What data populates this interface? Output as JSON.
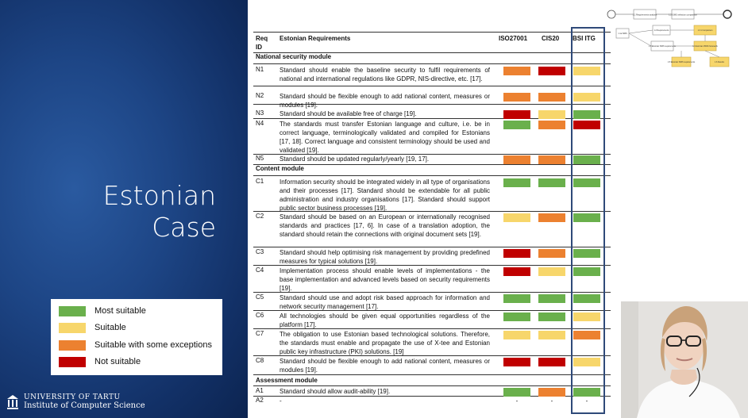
{
  "slide": {
    "title_line1": "Estonian",
    "title_line2": "Case"
  },
  "legend": [
    {
      "label": "Most suitable",
      "color": "#6ab04c"
    },
    {
      "label": "Suitable",
      "color": "#f7d66b"
    },
    {
      "label": "Suitable with some exceptions",
      "color": "#ec8130"
    },
    {
      "label": "Not suitable",
      "color": "#c00000"
    }
  ],
  "university": {
    "line1": "UNIVERSITY OF TARTU",
    "line2": "Institute of Computer Science"
  },
  "table": {
    "headers": {
      "req_id_1": "Req",
      "req_id_2": "ID",
      "requirements": "Estonian Requirements",
      "iso": "ISO27001",
      "cis": "CIS20",
      "bsi": "BSI ITG"
    },
    "sections": [
      {
        "title": "National security module",
        "rows": [
          {
            "id": "N1",
            "text": "Standard should enable the baseline security to fulfil requirements of national and international regulations like GDPR, NIS-directive, etc. [17].",
            "ratings": [
              "orange",
              "red",
              "yellow"
            ]
          },
          {
            "id": "N2",
            "text": "Standard should be flexible enough to add national content, measures or modules [19].",
            "ratings": [
              "orange",
              "orange",
              "yellow"
            ]
          },
          {
            "id": "N3",
            "text": "Standard should be available free of charge [19].",
            "ratings": [
              "red",
              "yellow",
              "green"
            ]
          },
          {
            "id": "N4",
            "text": "The standards must transfer Estonian language and culture, i.e. be in correct language, terminologically validated and compiled for Estonians [17, 18]. Correct language and consistent terminology should be used and validated [19].",
            "ratings": [
              "green",
              "orange",
              "red"
            ]
          },
          {
            "id": "N5",
            "text": "Standard should be updated regularly/yearly [19, 17].",
            "ratings": [
              "orange",
              "orange",
              "green"
            ]
          }
        ]
      },
      {
        "title": "Content module",
        "rows": [
          {
            "id": "C1",
            "text": "Information security should be integrated widely in all type of organisations and their processes [17]. Standard should be extendable for all public administration and industry organisations [17]. Standard should support public sector business processes [19].",
            "ratings": [
              "green",
              "green",
              "green"
            ]
          },
          {
            "id": "C2",
            "text": "Standard should be based on an European or internationally recognised standards and practices [17, 6]. In case of a translation adoption, the standard should retain the connections with original document sets [19].",
            "ratings": [
              "yellow",
              "orange",
              "green"
            ]
          },
          {
            "id": "C3",
            "text": "Standard should help optimising risk management by providing predefined measures for typical solutions [19].",
            "ratings": [
              "red",
              "orange",
              "green"
            ]
          },
          {
            "id": "C4",
            "text": "Implementation process should enable levels of implementations - the base implementation and advanced levels based on security requirements [19].",
            "ratings": [
              "red",
              "yellow",
              "green"
            ]
          },
          {
            "id": "C5",
            "text": "Standard should use and adopt risk based approach for information and network security management [17].",
            "ratings": [
              "green",
              "green",
              "green"
            ]
          },
          {
            "id": "C6",
            "text": "All technologies should be given equal opportunities regardless of the platform [17].",
            "ratings": [
              "green",
              "green",
              "yellow"
            ]
          },
          {
            "id": "C7",
            "text": "The obligation to use Estonian based technological solutions. Therefore, the standards must enable and propagate the use of X-tee and Estonian public key infrastructure (PKI) solutions. [19]",
            "ratings": [
              "yellow",
              "yellow",
              "orange"
            ]
          },
          {
            "id": "C8",
            "text": "Standard should be flexible enough to add national content, measures or modules [19].",
            "ratings": [
              "red",
              "red",
              "yellow"
            ]
          }
        ]
      },
      {
        "title": "Assessment module",
        "rows": [
          {
            "id": "A1",
            "text": "Standard should allow audit-ability [19].",
            "ratings": [
              "green",
              "orange",
              "green"
            ]
          },
          {
            "id": "A2",
            "text": "-",
            "ratings": [
              "-",
              "-",
              "-"
            ]
          }
        ]
      }
    ]
  },
  "rating_colors": {
    "green": "#6ab04c",
    "yellow": "#f7d66b",
    "orange": "#ec8130",
    "red": "#c00000"
  },
  "diagram": {
    "boxes": [
      {
        "text": "1.1 Requirements analysis"
      },
      {
        "text": "1.2 ISMS selection comparison"
      },
      {
        "text": "1.1a ISMS"
      },
      {
        "text": "1.2 Requirements"
      },
      {
        "text": "1.3 Estonian ISMS requirements"
      },
      {
        "text": "1.3.1 Comparison"
      },
      {
        "text": "1.4 Estonian ISMS framework"
      },
      {
        "text": "1.5 Estonian ISMS requirements"
      },
      {
        "text": "1.6 Results"
      }
    ]
  }
}
